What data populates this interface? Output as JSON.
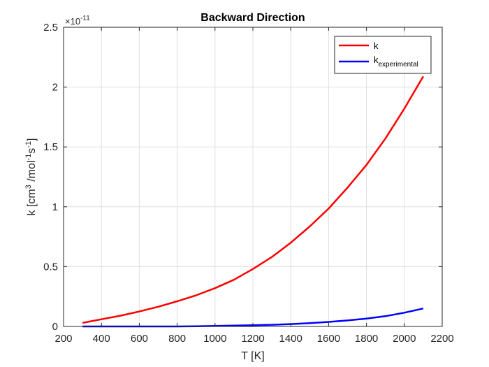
{
  "chart_data": {
    "type": "line",
    "title": "Backward Direction",
    "xlabel": "T [K]",
    "ylabel": "k [cm3 /mol-1s-1]",
    "y_exponent_label": "×10",
    "y_exponent": "-11",
    "xlim": [
      200,
      2200
    ],
    "ylim": [
      0,
      2.5
    ],
    "xticks": [
      200,
      400,
      600,
      800,
      1000,
      1200,
      1400,
      1600,
      1800,
      2000,
      2200
    ],
    "yticks": [
      0,
      0.5,
      1,
      1.5,
      2,
      2.5
    ],
    "ytick_labels": [
      "0",
      "0.5",
      "1",
      "1.5",
      "2",
      "2.5"
    ],
    "grid": true,
    "legend_position": "top-right",
    "x": [
      300,
      400,
      500,
      600,
      700,
      800,
      900,
      1000,
      1100,
      1200,
      1300,
      1400,
      1500,
      1600,
      1700,
      1800,
      1900,
      2000,
      2100
    ],
    "series": [
      {
        "name": "k",
        "color": "#ff0000",
        "values": [
          0.03,
          0.06,
          0.09,
          0.125,
          0.165,
          0.21,
          0.26,
          0.32,
          0.39,
          0.48,
          0.58,
          0.7,
          0.835,
          0.985,
          1.16,
          1.35,
          1.57,
          1.82,
          2.09
        ]
      },
      {
        "name": "k",
        "name_sub": "experimental",
        "color": "#0000ff",
        "values": [
          0.0,
          0.0,
          0.0,
          0.0,
          0.0,
          0.0,
          0.002,
          0.004,
          0.007,
          0.01,
          0.014,
          0.02,
          0.028,
          0.038,
          0.05,
          0.066,
          0.086,
          0.115,
          0.15
        ]
      }
    ]
  }
}
